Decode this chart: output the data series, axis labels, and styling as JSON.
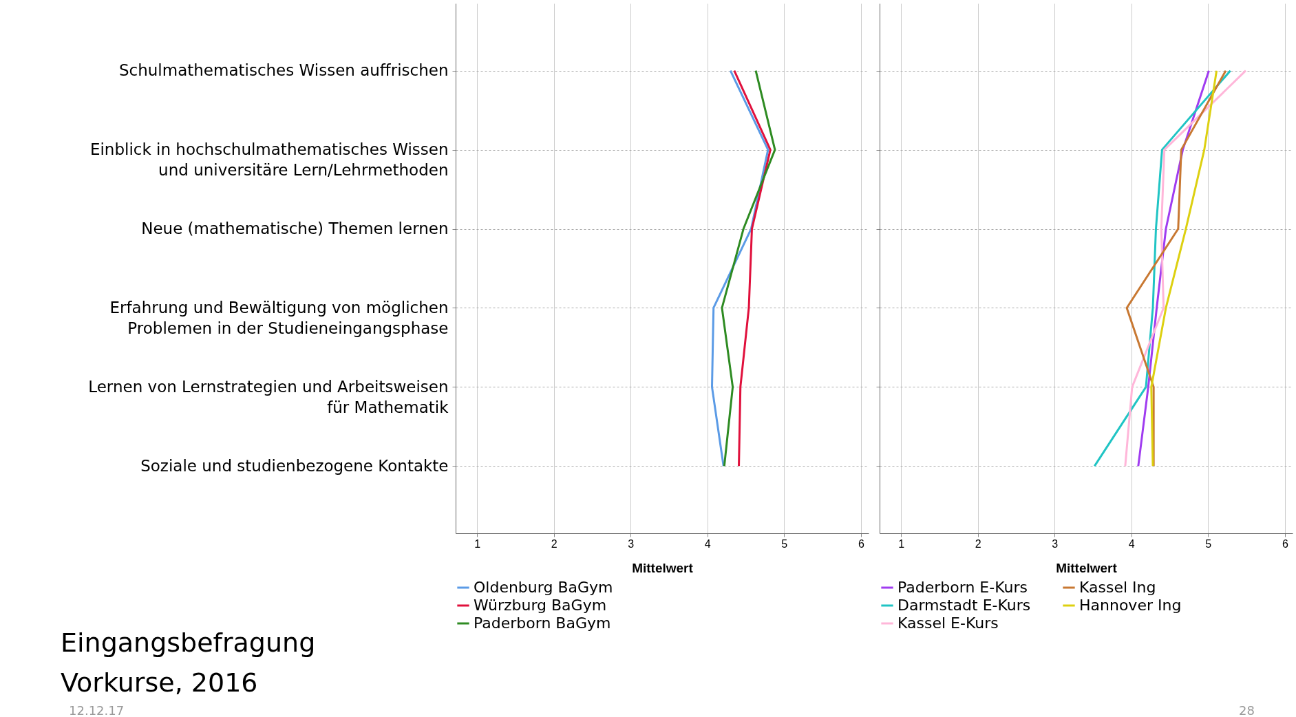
{
  "chart_data": [
    {
      "type": "line",
      "xlabel": "Mittelwert",
      "categories": [
        "Schulmathematisches Wissen auffrischen",
        "Einblick in hochschulmathematisches Wissen\nund universitäre Lern/Lehrmethoden",
        "Neue (mathematische) Themen lernen",
        "Erfahrung und Bewältigung von möglichen\nProblemen in der Studieneingangsphase",
        "Lernen von Lernstrategien und Arbeitsweisen\nfür Mathematik",
        "Soziale und studienbezogene Kontakte"
      ],
      "orientation": "horizontal",
      "xlim": [
        0.72,
        6.1
      ],
      "xticks": [
        1,
        2,
        3,
        4,
        5,
        6
      ],
      "grid": true,
      "legend": "bottom",
      "annotations": [
        "Eingangsbefragung\nVorkurse, 2016",
        "12.12.17",
        "28"
      ],
      "series": [
        {
          "name": "Oldenburg BaGym",
          "color": "#5b9be6",
          "values": [
            4.3,
            4.79,
            4.57,
            4.08,
            4.06,
            4.21
          ]
        },
        {
          "name": "Würzburg BaGym",
          "color": "#e0103c",
          "values": [
            4.35,
            4.82,
            4.58,
            4.54,
            4.43,
            4.41
          ]
        },
        {
          "name": "Paderborn BaGym",
          "color": "#2e8b22",
          "values": [
            4.63,
            4.88,
            4.47,
            4.19,
            4.33,
            4.22
          ]
        }
      ]
    },
    {
      "type": "line",
      "xlabel": "Mittelwert",
      "categories": [
        null,
        null,
        null,
        null,
        null,
        null
      ],
      "orientation": "horizontal",
      "xlim": [
        0.72,
        6.1
      ],
      "xticks": [
        1,
        2,
        3,
        4,
        5,
        6
      ],
      "grid": true,
      "legend": "bottom",
      "tick_labels": "x",
      "series": [
        {
          "name": "Paderborn E-Kurs",
          "color": "#a03cf0",
          "values": [
            5.01,
            4.67,
            4.45,
            4.33,
            4.22,
            4.09
          ]
        },
        {
          "name": "Darmstadt E-Kurs",
          "color": "#20c4c4",
          "values": [
            5.29,
            4.4,
            4.32,
            4.28,
            4.19,
            3.52
          ]
        },
        {
          "name": "Kassel E-Kurs",
          "color": "#ffb6d9",
          "values": [
            5.49,
            4.43,
            4.39,
            4.42,
            4.01,
            3.92
          ]
        },
        {
          "name": "Kassel Ing",
          "color": "#c87832",
          "values": [
            5.23,
            4.65,
            4.61,
            3.94,
            4.29,
            4.29
          ]
        },
        {
          "name": "Hannover Ing",
          "color": "#ddd010",
          "values": [
            5.11,
            4.95,
            4.71,
            4.45,
            4.26,
            4.28
          ]
        }
      ]
    }
  ]
}
